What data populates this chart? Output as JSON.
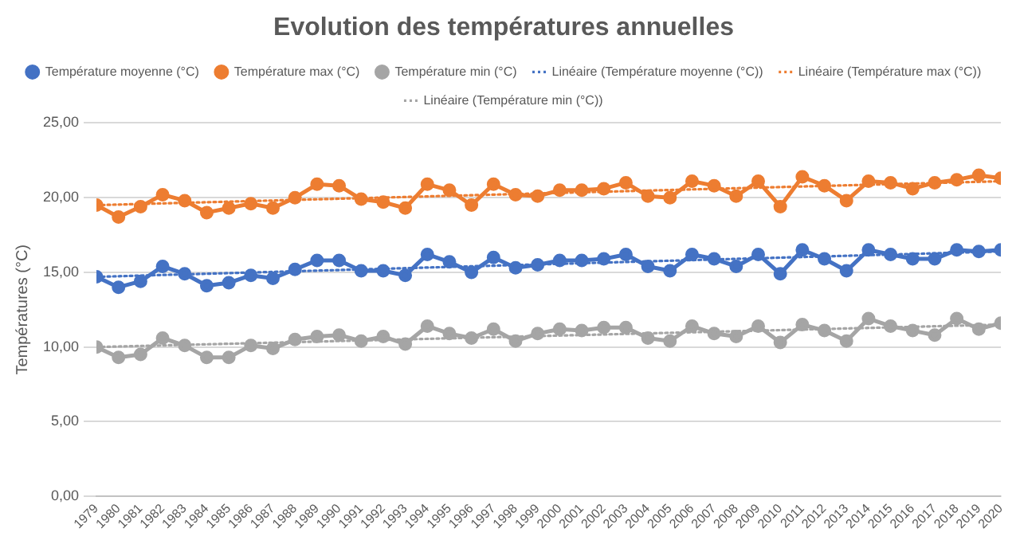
{
  "chart_data": {
    "type": "line",
    "title": "Evolution des températures annuelles",
    "ylabel": "Températures (°C)",
    "x": [
      1979,
      1980,
      1981,
      1982,
      1983,
      1984,
      1985,
      1986,
      1987,
      1988,
      1989,
      1990,
      1991,
      1992,
      1993,
      1994,
      1995,
      1996,
      1997,
      1998,
      1999,
      2000,
      2001,
      2002,
      2003,
      2004,
      2005,
      2006,
      2007,
      2008,
      2009,
      2010,
      2011,
      2012,
      2013,
      2014,
      2015,
      2016,
      2017,
      2018,
      2019,
      2020
    ],
    "xlim": [
      1979,
      2020
    ],
    "xticks": [
      1979,
      1980,
      1981,
      1982,
      1983,
      1984,
      1985,
      1986,
      1987,
      1988,
      1989,
      1990,
      1991,
      1992,
      1993,
      1994,
      1995,
      1996,
      1997,
      1998,
      1999,
      2000,
      2001,
      2002,
      2003,
      2004,
      2005,
      2006,
      2007,
      2008,
      2009,
      2010,
      2011,
      2012,
      2013,
      2014,
      2015,
      2016,
      2017,
      2018,
      2019,
      2020
    ],
    "series": [
      {
        "name": "Température moyenne (°C)",
        "color": "#4472c4",
        "marker": "circle",
        "line_style": "solid",
        "values": [
          14.7,
          14.0,
          14.4,
          15.4,
          14.9,
          14.1,
          14.3,
          14.8,
          14.6,
          15.2,
          15.8,
          15.8,
          15.1,
          15.1,
          14.8,
          16.2,
          15.7,
          15.0,
          16.0,
          15.3,
          15.5,
          15.8,
          15.8,
          15.9,
          16.2,
          15.4,
          15.1,
          16.2,
          15.9,
          15.4,
          16.2,
          14.9,
          16.5,
          15.9,
          15.1,
          16.5,
          16.2,
          15.9,
          15.9,
          16.5,
          16.4,
          16.5
        ]
      },
      {
        "name": "Température max (°C)",
        "color": "#ed7d31",
        "marker": "circle",
        "line_style": "solid",
        "values": [
          19.5,
          18.7,
          19.4,
          20.2,
          19.8,
          19.0,
          19.3,
          19.6,
          19.3,
          20.0,
          20.9,
          20.8,
          19.9,
          19.7,
          19.3,
          20.9,
          20.5,
          19.5,
          20.9,
          20.2,
          20.1,
          20.5,
          20.5,
          20.6,
          21.0,
          20.1,
          20.0,
          21.1,
          20.8,
          20.1,
          21.1,
          19.4,
          21.4,
          20.8,
          19.8,
          21.1,
          21.0,
          20.6,
          21.0,
          21.2,
          21.5,
          21.3
        ]
      },
      {
        "name": "Température min (°C)",
        "color": "#a5a5a5",
        "marker": "circle",
        "line_style": "solid",
        "values": [
          10.0,
          9.3,
          9.5,
          10.6,
          10.1,
          9.3,
          9.3,
          10.1,
          9.9,
          10.5,
          10.7,
          10.8,
          10.4,
          10.7,
          10.2,
          11.4,
          10.9,
          10.6,
          11.2,
          10.4,
          10.9,
          11.2,
          11.1,
          11.3,
          11.3,
          10.6,
          10.4,
          11.4,
          10.9,
          10.7,
          11.4,
          10.3,
          11.5,
          11.1,
          10.4,
          11.9,
          11.4,
          11.1,
          10.8,
          11.9,
          11.2,
          11.6
        ]
      },
      {
        "name": "Linéaire (Température moyenne (°C))",
        "color": "#4472c4",
        "marker": "none",
        "line_style": "dotted",
        "values": [
          14.7,
          null,
          null,
          null,
          null,
          null,
          null,
          null,
          null,
          null,
          null,
          null,
          null,
          null,
          null,
          null,
          null,
          null,
          null,
          null,
          null,
          null,
          null,
          null,
          null,
          null,
          null,
          null,
          null,
          null,
          null,
          null,
          null,
          null,
          null,
          null,
          null,
          null,
          null,
          null,
          null,
          16.4
        ]
      },
      {
        "name": "Linéaire (Température max (°C))",
        "color": "#ed7d31",
        "marker": "none",
        "line_style": "dotted",
        "values": [
          19.5,
          null,
          null,
          null,
          null,
          null,
          null,
          null,
          null,
          null,
          null,
          null,
          null,
          null,
          null,
          null,
          null,
          null,
          null,
          null,
          null,
          null,
          null,
          null,
          null,
          null,
          null,
          null,
          null,
          null,
          null,
          null,
          null,
          null,
          null,
          null,
          null,
          null,
          null,
          null,
          null,
          21.1
        ]
      },
      {
        "name": "Linéaire (Température min (°C))",
        "color": "#a5a5a5",
        "marker": "none",
        "line_style": "dotted",
        "values": [
          10.0,
          null,
          null,
          null,
          null,
          null,
          null,
          null,
          null,
          null,
          null,
          null,
          null,
          null,
          null,
          null,
          null,
          null,
          null,
          null,
          null,
          null,
          null,
          null,
          null,
          null,
          null,
          null,
          null,
          null,
          null,
          null,
          null,
          null,
          null,
          null,
          null,
          null,
          null,
          null,
          null,
          11.5
        ]
      }
    ],
    "ylim": [
      0,
      25
    ],
    "yticks": [
      {
        "value": 0,
        "label": "0,00"
      },
      {
        "value": 5,
        "label": "5,00"
      },
      {
        "value": 10,
        "label": "10,00"
      },
      {
        "value": 15,
        "label": "15,00"
      },
      {
        "value": 20,
        "label": "20,00"
      },
      {
        "value": 25,
        "label": "25,00"
      }
    ],
    "grid": "y",
    "legend": "top"
  }
}
